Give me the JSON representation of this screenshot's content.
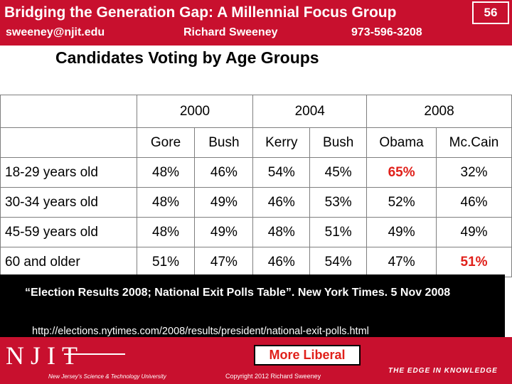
{
  "header": {
    "title": "Bridging the Generation Gap: A Millennial Focus Group",
    "slide_number": "56",
    "email": "sweeney@njit.edu",
    "author": "Richard Sweeney",
    "phone": "973-596-3208"
  },
  "subtitle": "Candidates Voting by Age Groups",
  "table": {
    "years": [
      "2000",
      "2004",
      "2008"
    ],
    "candidates": [
      "Gore",
      "Bush",
      "Kerry",
      "Bush",
      "Obama",
      "Mc.Cain"
    ],
    "rows": [
      {
        "label": "18-29 years old",
        "values": [
          "48%",
          "46%",
          "54%",
          "45%",
          "65%",
          "32%"
        ]
      },
      {
        "label": "30-34 years old",
        "values": [
          "48%",
          "49%",
          "46%",
          "53%",
          "52%",
          "46%"
        ]
      },
      {
        "label": "45-59 years old",
        "values": [
          "48%",
          "49%",
          "48%",
          "51%",
          "49%",
          "49%"
        ]
      },
      {
        "label": "60 and older",
        "values": [
          "51%",
          "47%",
          "46%",
          "54%",
          "47%",
          "51%"
        ]
      }
    ]
  },
  "citation": {
    "text": "“Election Results 2008; National Exit Polls Table”.  New York Times. 5 Nov 2008",
    "url": "http://elections.nytimes.com/2008/results/president/national-exit-polls.html"
  },
  "footer": {
    "logo_text": "NJIT",
    "logo_subtext": "New Jersey's Science & Technology University",
    "more_liberal": "More Liberal",
    "copyright": "Copyright  2012 Richard Sweeney",
    "tagline": "THE EDGE IN KNOWLEDGE"
  },
  "colors": {
    "brand_red": "#c8102e",
    "highlight_red": "#e0201a"
  }
}
